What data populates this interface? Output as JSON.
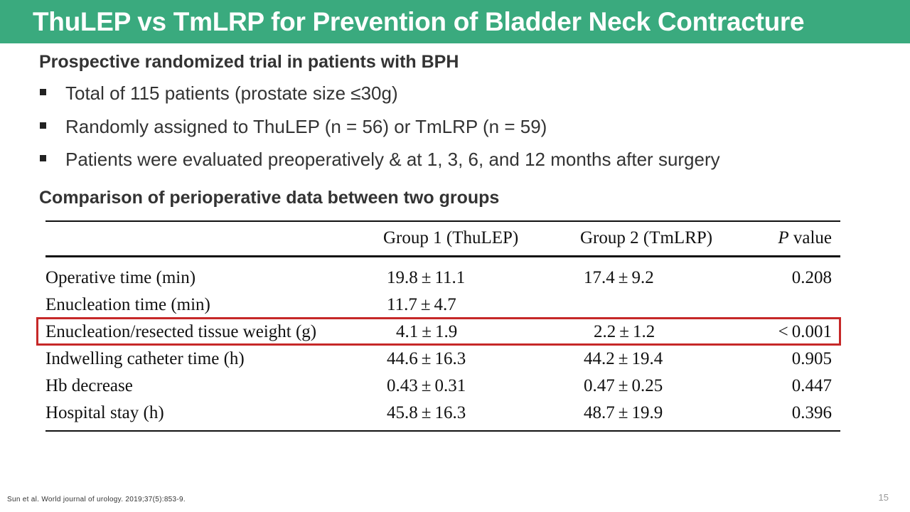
{
  "slide": {
    "title": "ThuLEP vs TmLRP for Prevention of Bladder Neck Contracture",
    "subheading_1": "Prospective randomized trial in patients with BPH",
    "bullets": [
      "Total of 115 patients (prostate size ≤30g)",
      "Randomly assigned to ThuLEP (n = 56) or TmLRP (n = 59)",
      "Patients were evaluated preoperatively & at 1, 3, 6, and 12 months after surgery"
    ],
    "subheading_2": "Comparison of perioperative data between two groups",
    "footnote": "Sun et al. World journal of urology. 2019;37(5):853-9.",
    "page_number": "15",
    "accent_color": "#3aaa7e",
    "highlight_color": "#c62828"
  },
  "table": {
    "headers": {
      "group1": "Group 1 (ThuLEP)",
      "group2": "Group 2 (TmLRP)",
      "p_italic": "P",
      "p_rest": " value"
    },
    "rows": [
      {
        "label": "Operative time (min)",
        "g1": "19.8 ± 11.1",
        "g2": "17.4 ± 9.2",
        "p": "0.208"
      },
      {
        "label": "Enucleation time (min)",
        "g1": "11.7 ± 4.7",
        "g2": "",
        "p": ""
      },
      {
        "label": "Enucleation/resected tissue weight (g)",
        "g1": "4.1 ± 1.9",
        "g2": "2.2 ± 1.2",
        "p": "< 0.001"
      },
      {
        "label": "Indwelling catheter time (h)",
        "g1": "44.6 ± 16.3",
        "g2": "44.2 ± 19.4",
        "p": "0.905"
      },
      {
        "label": "Hb decrease",
        "g1": "0.43 ± 0.31",
        "g2": "0.47 ± 0.25",
        "p": "0.447"
      },
      {
        "label": "Hospital stay (h)",
        "g1": "45.8 ± 16.3",
        "g2": "48.7 ± 19.9",
        "p": "0.396"
      }
    ],
    "highlighted_row_index": 2
  }
}
